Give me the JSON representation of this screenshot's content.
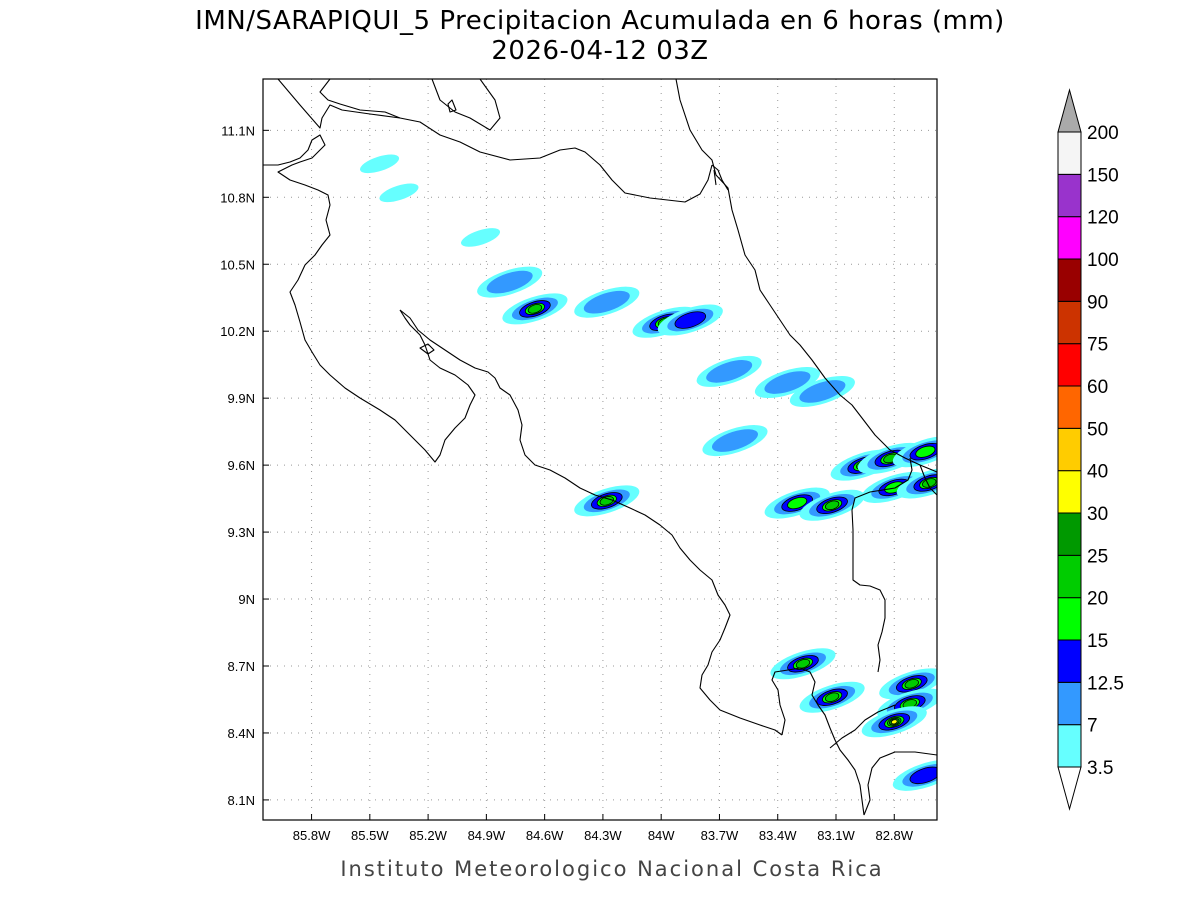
{
  "title": {
    "line1": "IMN/SARAPIQUI_5 Precipitacion Acumulada en 6 horas (mm)",
    "line2": "2026-04-12 03Z"
  },
  "footer": "Instituto Meteorologico Nacional Costa Rica",
  "map": {
    "lon_range": [
      -86.05,
      -82.58
    ],
    "lat_range": [
      8.01,
      11.33
    ],
    "lon_ticks": [
      "85.8W",
      "85.5W",
      "85.2W",
      "84.9W",
      "84.6W",
      "84.3W",
      "84W",
      "83.7W",
      "83.4W",
      "83.1W",
      "82.8W"
    ],
    "lon_values": [
      -85.8,
      -85.5,
      -85.2,
      -84.9,
      -84.6,
      -84.3,
      -84.0,
      -83.7,
      -83.4,
      -83.1,
      -82.8
    ],
    "lat_ticks": [
      "8.1N",
      "8.4N",
      "8.7N",
      "9N",
      "9.3N",
      "9.6N",
      "9.9N",
      "10.2N",
      "10.5N",
      "10.8N",
      "11.1N"
    ],
    "lat_values": [
      8.1,
      8.4,
      8.7,
      9.0,
      9.3,
      9.6,
      9.9,
      10.2,
      10.5,
      10.8,
      11.1
    ],
    "grid": true
  },
  "colorbar": {
    "labels": [
      "3.5",
      "7",
      "12.5",
      "15",
      "20",
      "25",
      "30",
      "40",
      "50",
      "60",
      "75",
      "90",
      "100",
      "120",
      "150",
      "200"
    ],
    "colors": [
      "#66ffff",
      "#3399ff",
      "#0000ff",
      "#00ff00",
      "#00cc00",
      "#009900",
      "#ffff00",
      "#ffcc00",
      "#ff6600",
      "#ff0000",
      "#cc3300",
      "#990000",
      "#ff00ff",
      "#9933cc",
      "#f5f5f5"
    ],
    "over_color": "#aaaaaa",
    "under_color": "#ffffff"
  },
  "rain_cells": [
    {
      "lon": -85.45,
      "lat": 10.95,
      "max": "3.5"
    },
    {
      "lon": -85.35,
      "lat": 10.82,
      "max": "3.5"
    },
    {
      "lon": -84.93,
      "lat": 10.62,
      "max": "3.5"
    },
    {
      "lon": -84.78,
      "lat": 10.42,
      "max": "7"
    },
    {
      "lon": -84.65,
      "lat": 10.3,
      "max": "20"
    },
    {
      "lon": -84.28,
      "lat": 10.33,
      "max": "7"
    },
    {
      "lon": -83.98,
      "lat": 10.24,
      "max": "20"
    },
    {
      "lon": -83.85,
      "lat": 10.25,
      "max": "12.5"
    },
    {
      "lon": -83.65,
      "lat": 10.02,
      "max": "7"
    },
    {
      "lon": -83.62,
      "lat": 9.71,
      "max": "7"
    },
    {
      "lon": -83.35,
      "lat": 9.97,
      "max": "7"
    },
    {
      "lon": -83.17,
      "lat": 9.93,
      "max": "7"
    },
    {
      "lon": -82.96,
      "lat": 9.6,
      "max": "20"
    },
    {
      "lon": -82.82,
      "lat": 9.63,
      "max": "20"
    },
    {
      "lon": -82.8,
      "lat": 9.5,
      "max": "15"
    },
    {
      "lon": -82.62,
      "lat": 9.52,
      "max": "20"
    },
    {
      "lon": -82.64,
      "lat": 9.66,
      "max": "15"
    },
    {
      "lon": -83.3,
      "lat": 9.43,
      "max": "15"
    },
    {
      "lon": -83.12,
      "lat": 9.42,
      "max": "20"
    },
    {
      "lon": -84.28,
      "lat": 9.44,
      "max": "20"
    },
    {
      "lon": -83.27,
      "lat": 8.71,
      "max": "20"
    },
    {
      "lon": -83.12,
      "lat": 8.56,
      "max": "20"
    },
    {
      "lon": -82.71,
      "lat": 8.62,
      "max": "20"
    },
    {
      "lon": -82.72,
      "lat": 8.53,
      "max": "20"
    },
    {
      "lon": -82.8,
      "lat": 8.45,
      "max": "30"
    },
    {
      "lon": -82.64,
      "lat": 8.21,
      "max": "12.5"
    }
  ]
}
